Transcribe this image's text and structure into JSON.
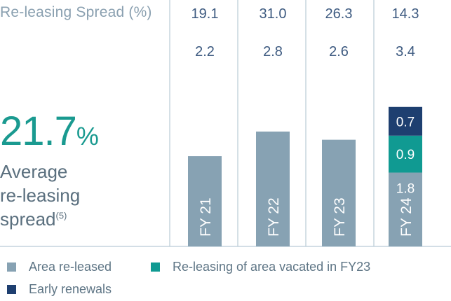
{
  "header": {
    "label": "Re-leasing Spread (%)"
  },
  "summary": {
    "value": "21.7",
    "unit": "%",
    "caption_line1": "Average",
    "caption_line2": "re-leasing",
    "caption_line3": "spread",
    "footnote": "(5)"
  },
  "colors": {
    "area_released": "#87a2b3",
    "vacated": "#109a92",
    "early": "#1e3f70",
    "divider": "#b9cbd6",
    "value_text": "#3d5a80"
  },
  "legend": [
    {
      "label": "Area re-leased",
      "color_key": "area_released"
    },
    {
      "label": "Re-leasing of area vacated in FY23",
      "color_key": "vacated"
    },
    {
      "label": "Early renewals",
      "color_key": "early"
    }
  ],
  "chart_data": {
    "type": "bar",
    "stacked": true,
    "categories": [
      "FY 21",
      "FY 22",
      "FY 23",
      "FY 24"
    ],
    "top_row_values": [
      "19.1",
      "31.0",
      "26.3",
      "14.3"
    ],
    "second_row_values": [
      "2.2",
      "2.8",
      "2.6",
      "3.4"
    ],
    "series": [
      {
        "name": "Area re-leased",
        "color_key": "area_released",
        "values": [
          2.2,
          2.8,
          2.6,
          1.8
        ]
      },
      {
        "name": "Re-leasing of area vacated in FY23",
        "color_key": "vacated",
        "values": [
          0,
          0,
          0,
          0.9
        ]
      },
      {
        "name": "Early renewals",
        "color_key": "early",
        "values": [
          0,
          0,
          0,
          0.7
        ]
      }
    ],
    "segment_labels": [
      "",
      "",
      "",
      "1.8",
      "0.9",
      "0.7"
    ]
  }
}
